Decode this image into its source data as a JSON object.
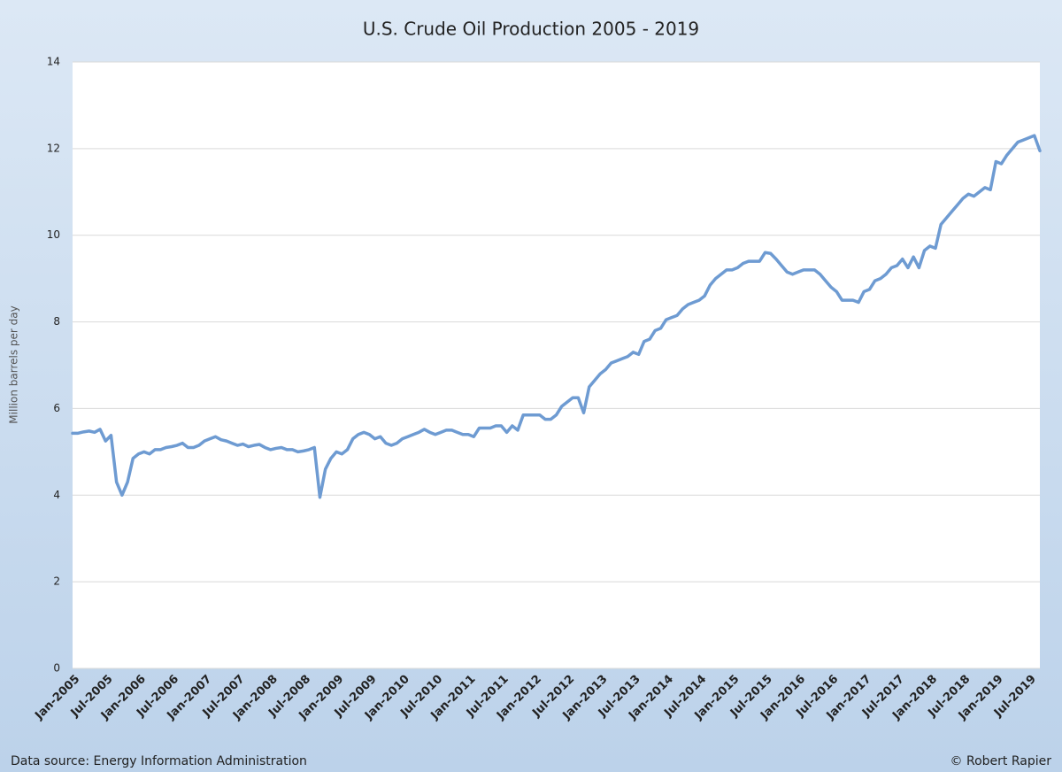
{
  "chart_data": {
    "type": "line",
    "title": "U.S. Crude Oil Production 2005 - 2019",
    "y_label": "Million barrels per day",
    "source": "Data source: Energy Information Administration",
    "credit": "© Robert Rapier",
    "categories": [
      "Jan-2005",
      null,
      null,
      null,
      null,
      null,
      "Jul-2005",
      null,
      null,
      null,
      null,
      null,
      "Jan-2006",
      null,
      null,
      null,
      null,
      null,
      "Jul-2006",
      null,
      null,
      null,
      null,
      null,
      "Jan-2007",
      null,
      null,
      null,
      null,
      null,
      "Jul-2007",
      null,
      null,
      null,
      null,
      null,
      "Jan-2008",
      null,
      null,
      null,
      null,
      null,
      "Jul-2008",
      null,
      null,
      null,
      null,
      null,
      "Jan-2009",
      null,
      null,
      null,
      null,
      null,
      "Jul-2009",
      null,
      null,
      null,
      null,
      null,
      "Jan-2010",
      null,
      null,
      null,
      null,
      null,
      "Jul-2010",
      null,
      null,
      null,
      null,
      null,
      "Jan-2011",
      null,
      null,
      null,
      null,
      null,
      "Jul-2011",
      null,
      null,
      null,
      null,
      null,
      "Jan-2012",
      null,
      null,
      null,
      null,
      null,
      "Jul-2012",
      null,
      null,
      null,
      null,
      null,
      "Jan-2013",
      null,
      null,
      null,
      null,
      null,
      "Jul-2013",
      null,
      null,
      null,
      null,
      null,
      "Jan-2014",
      null,
      null,
      null,
      null,
      null,
      "Jul-2014",
      null,
      null,
      null,
      null,
      null,
      "Jan-2015",
      null,
      null,
      null,
      null,
      null,
      "Jul-2015",
      null,
      null,
      null,
      null,
      null,
      "Jan-2016",
      null,
      null,
      null,
      null,
      null,
      "Jul-2016",
      null,
      null,
      null,
      null,
      null,
      "Jan-2017",
      null,
      null,
      null,
      null,
      null,
      "Jul-2017",
      null,
      null,
      null,
      null,
      null,
      "Jan-2018",
      null,
      null,
      null,
      null,
      null,
      "Jul-2018",
      null,
      null,
      null,
      null,
      null,
      "Jan-2019",
      null,
      null,
      null,
      null,
      null,
      "Jul-2019",
      null,
      null
    ],
    "series": [
      {
        "name": "U.S. Crude Oil Production",
        "color": "#6e9bd2",
        "values": [
          5.43,
          5.43,
          5.46,
          5.48,
          5.45,
          5.52,
          5.25,
          5.38,
          4.3,
          4.0,
          4.3,
          4.85,
          4.95,
          5.0,
          4.95,
          5.05,
          5.05,
          5.1,
          5.12,
          5.15,
          5.2,
          5.1,
          5.1,
          5.15,
          5.25,
          5.3,
          5.35,
          5.28,
          5.25,
          5.2,
          5.15,
          5.18,
          5.12,
          5.15,
          5.17,
          5.1,
          5.05,
          5.08,
          5.1,
          5.05,
          5.05,
          5.0,
          5.02,
          5.05,
          5.1,
          3.95,
          4.6,
          4.85,
          5.0,
          4.95,
          5.05,
          5.3,
          5.4,
          5.45,
          5.4,
          5.3,
          5.35,
          5.2,
          5.15,
          5.2,
          5.3,
          5.35,
          5.4,
          5.45,
          5.52,
          5.45,
          5.4,
          5.45,
          5.5,
          5.5,
          5.45,
          5.4,
          5.4,
          5.35,
          5.55,
          5.55,
          5.55,
          5.6,
          5.6,
          5.45,
          5.6,
          5.5,
          5.85,
          5.85,
          5.85,
          5.85,
          5.75,
          5.75,
          5.85,
          6.05,
          6.15,
          6.25,
          6.25,
          5.9,
          6.5,
          6.65,
          6.8,
          6.9,
          7.05,
          7.1,
          7.15,
          7.2,
          7.3,
          7.25,
          7.55,
          7.6,
          7.8,
          7.85,
          8.05,
          8.1,
          8.15,
          8.3,
          8.4,
          8.45,
          8.5,
          8.6,
          8.85,
          9.0,
          9.1,
          9.2,
          9.2,
          9.25,
          9.35,
          9.4,
          9.4,
          9.4,
          9.6,
          9.58,
          9.45,
          9.3,
          9.15,
          9.1,
          9.15,
          9.2,
          9.2,
          9.2,
          9.1,
          8.95,
          8.8,
          8.7,
          8.5,
          8.5,
          8.5,
          8.45,
          8.7,
          8.75,
          8.95,
          9.0,
          9.1,
          9.25,
          9.3,
          9.45,
          9.25,
          9.5,
          9.25,
          9.65,
          9.75,
          9.7,
          10.25,
          10.4,
          10.55,
          10.7,
          10.85,
          10.95,
          10.9,
          11.0,
          11.1,
          11.05,
          11.7,
          11.65,
          11.85,
          12.0,
          12.15,
          12.2,
          12.25,
          12.3,
          11.95
        ]
      }
    ],
    "ylim": [
      0,
      14
    ],
    "yticks": [
      0,
      2,
      4,
      6,
      8,
      10,
      12,
      14
    ],
    "grid": true
  }
}
